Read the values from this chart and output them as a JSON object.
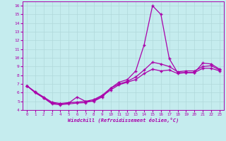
{
  "xlabel": "Windchill (Refroidissement éolien,°C)",
  "background_color": "#c5ecee",
  "line_color": "#aa00aa",
  "grid_color": "#b0d8da",
  "xlim": [
    -0.5,
    23.5
  ],
  "ylim": [
    4,
    16.5
  ],
  "yticks": [
    4,
    5,
    6,
    7,
    8,
    9,
    10,
    11,
    12,
    13,
    14,
    15,
    16
  ],
  "xticks": [
    0,
    1,
    2,
    3,
    4,
    5,
    6,
    7,
    8,
    9,
    10,
    11,
    12,
    13,
    14,
    15,
    16,
    17,
    18,
    19,
    20,
    21,
    22,
    23
  ],
  "line1_x": [
    0,
    1,
    2,
    3,
    4,
    5,
    6,
    7,
    8,
    9,
    10,
    11,
    12,
    13,
    14,
    15,
    16,
    17,
    18,
    19,
    20,
    21,
    22,
    23
  ],
  "line1_y": [
    6.8,
    6.0,
    5.4,
    4.8,
    4.7,
    4.8,
    5.5,
    5.0,
    5.0,
    5.5,
    6.5,
    7.2,
    7.5,
    8.5,
    11.5,
    16.0,
    15.0,
    9.9,
    8.3,
    8.3,
    8.3,
    9.4,
    9.3,
    8.7
  ],
  "line2_x": [
    0,
    1,
    2,
    3,
    4,
    5,
    6,
    7,
    8,
    9,
    10,
    11,
    12,
    13,
    14,
    15,
    16,
    17,
    18,
    19,
    20,
    21,
    22,
    23
  ],
  "line2_y": [
    6.8,
    6.1,
    5.5,
    4.9,
    4.75,
    4.85,
    4.9,
    5.0,
    5.2,
    5.7,
    6.5,
    7.0,
    7.3,
    7.8,
    8.6,
    9.5,
    9.3,
    9.0,
    8.4,
    8.5,
    8.5,
    9.0,
    9.1,
    8.6
  ],
  "line3_x": [
    0,
    1,
    2,
    3,
    4,
    5,
    6,
    7,
    8,
    9,
    10,
    11,
    12,
    13,
    14,
    15,
    16,
    17,
    18,
    19,
    20,
    21,
    22,
    23
  ],
  "line3_y": [
    6.8,
    6.0,
    5.4,
    4.7,
    4.6,
    4.7,
    4.8,
    4.85,
    5.1,
    5.6,
    6.3,
    6.9,
    7.2,
    7.5,
    8.2,
    8.7,
    8.5,
    8.6,
    8.2,
    8.3,
    8.3,
    8.8,
    8.8,
    8.5
  ]
}
